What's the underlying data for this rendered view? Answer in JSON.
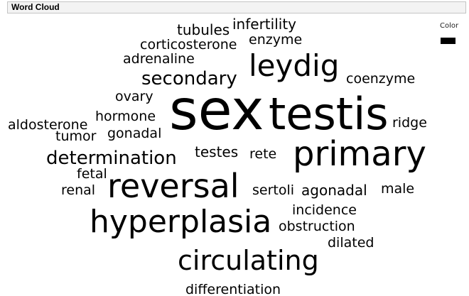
{
  "panel": {
    "title": "Word Cloud"
  },
  "legend": {
    "label": "Color",
    "color": "#000000"
  },
  "chart_data": {
    "type": "word_cloud",
    "color": "#000000",
    "words": [
      {
        "text": "sex",
        "weight": 78
      },
      {
        "text": "testis",
        "weight": 62
      },
      {
        "text": "primary",
        "weight": 48
      },
      {
        "text": "reversal",
        "weight": 46
      },
      {
        "text": "hyperplasia",
        "weight": 44
      },
      {
        "text": "leydig",
        "weight": 42
      },
      {
        "text": "circulating",
        "weight": 38
      },
      {
        "text": "secondary",
        "weight": 26
      },
      {
        "text": "determination",
        "weight": 26
      },
      {
        "text": "infertility",
        "weight": 20
      },
      {
        "text": "tubules",
        "weight": 20
      },
      {
        "text": "corticosterone",
        "weight": 19
      },
      {
        "text": "enzyme",
        "weight": 19
      },
      {
        "text": "adrenaline",
        "weight": 19
      },
      {
        "text": "coenzyme",
        "weight": 19
      },
      {
        "text": "ovary",
        "weight": 19
      },
      {
        "text": "aldosterone",
        "weight": 19
      },
      {
        "text": "hormone",
        "weight": 19
      },
      {
        "text": "ridge",
        "weight": 19
      },
      {
        "text": "tumor",
        "weight": 19
      },
      {
        "text": "gonadal",
        "weight": 19
      },
      {
        "text": "testes",
        "weight": 20
      },
      {
        "text": "rete",
        "weight": 19
      },
      {
        "text": "fetal",
        "weight": 19
      },
      {
        "text": "renal",
        "weight": 19
      },
      {
        "text": "sertoli",
        "weight": 19
      },
      {
        "text": "agonadal",
        "weight": 20
      },
      {
        "text": "male",
        "weight": 19
      },
      {
        "text": "incidence",
        "weight": 19
      },
      {
        "text": "obstruction",
        "weight": 19
      },
      {
        "text": "dilated",
        "weight": 19
      },
      {
        "text": "differentiation",
        "weight": 19
      }
    ]
  }
}
